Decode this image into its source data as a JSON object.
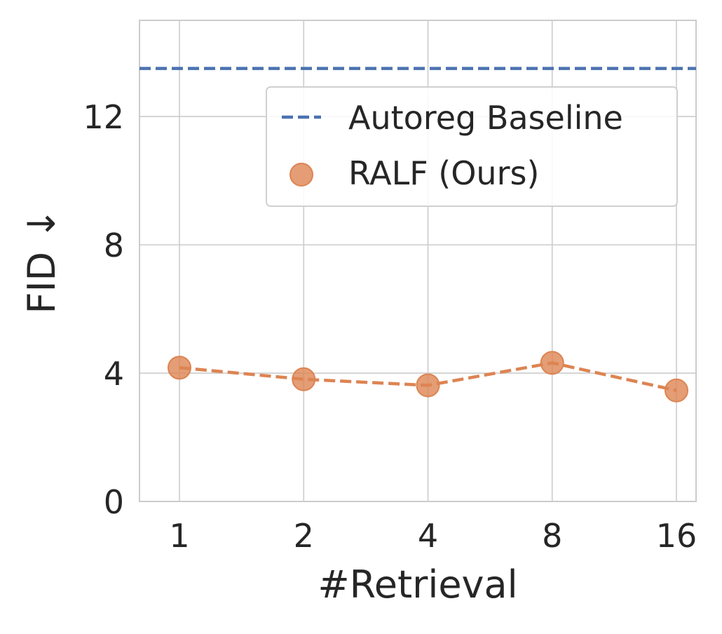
{
  "chart_data": {
    "type": "line",
    "title": "",
    "xlabel": "#Retrieval",
    "ylabel": "FID ↓",
    "categories": [
      "1",
      "2",
      "4",
      "8",
      "16"
    ],
    "ylim": [
      0,
      15
    ],
    "yticks": [
      "0",
      "4",
      "8",
      "12"
    ],
    "grid": true,
    "legend_position": "top-right",
    "series": [
      {
        "name": "Autoreg Baseline",
        "kind": "horizontal-dashed-line",
        "value": 13.5,
        "color": "#4c72b0"
      },
      {
        "name": "RALF (Ours)",
        "kind": "scatter-with-dashed-line",
        "values": [
          4.17,
          3.81,
          3.62,
          4.32,
          3.46
        ],
        "color": "#dd8452"
      }
    ]
  }
}
